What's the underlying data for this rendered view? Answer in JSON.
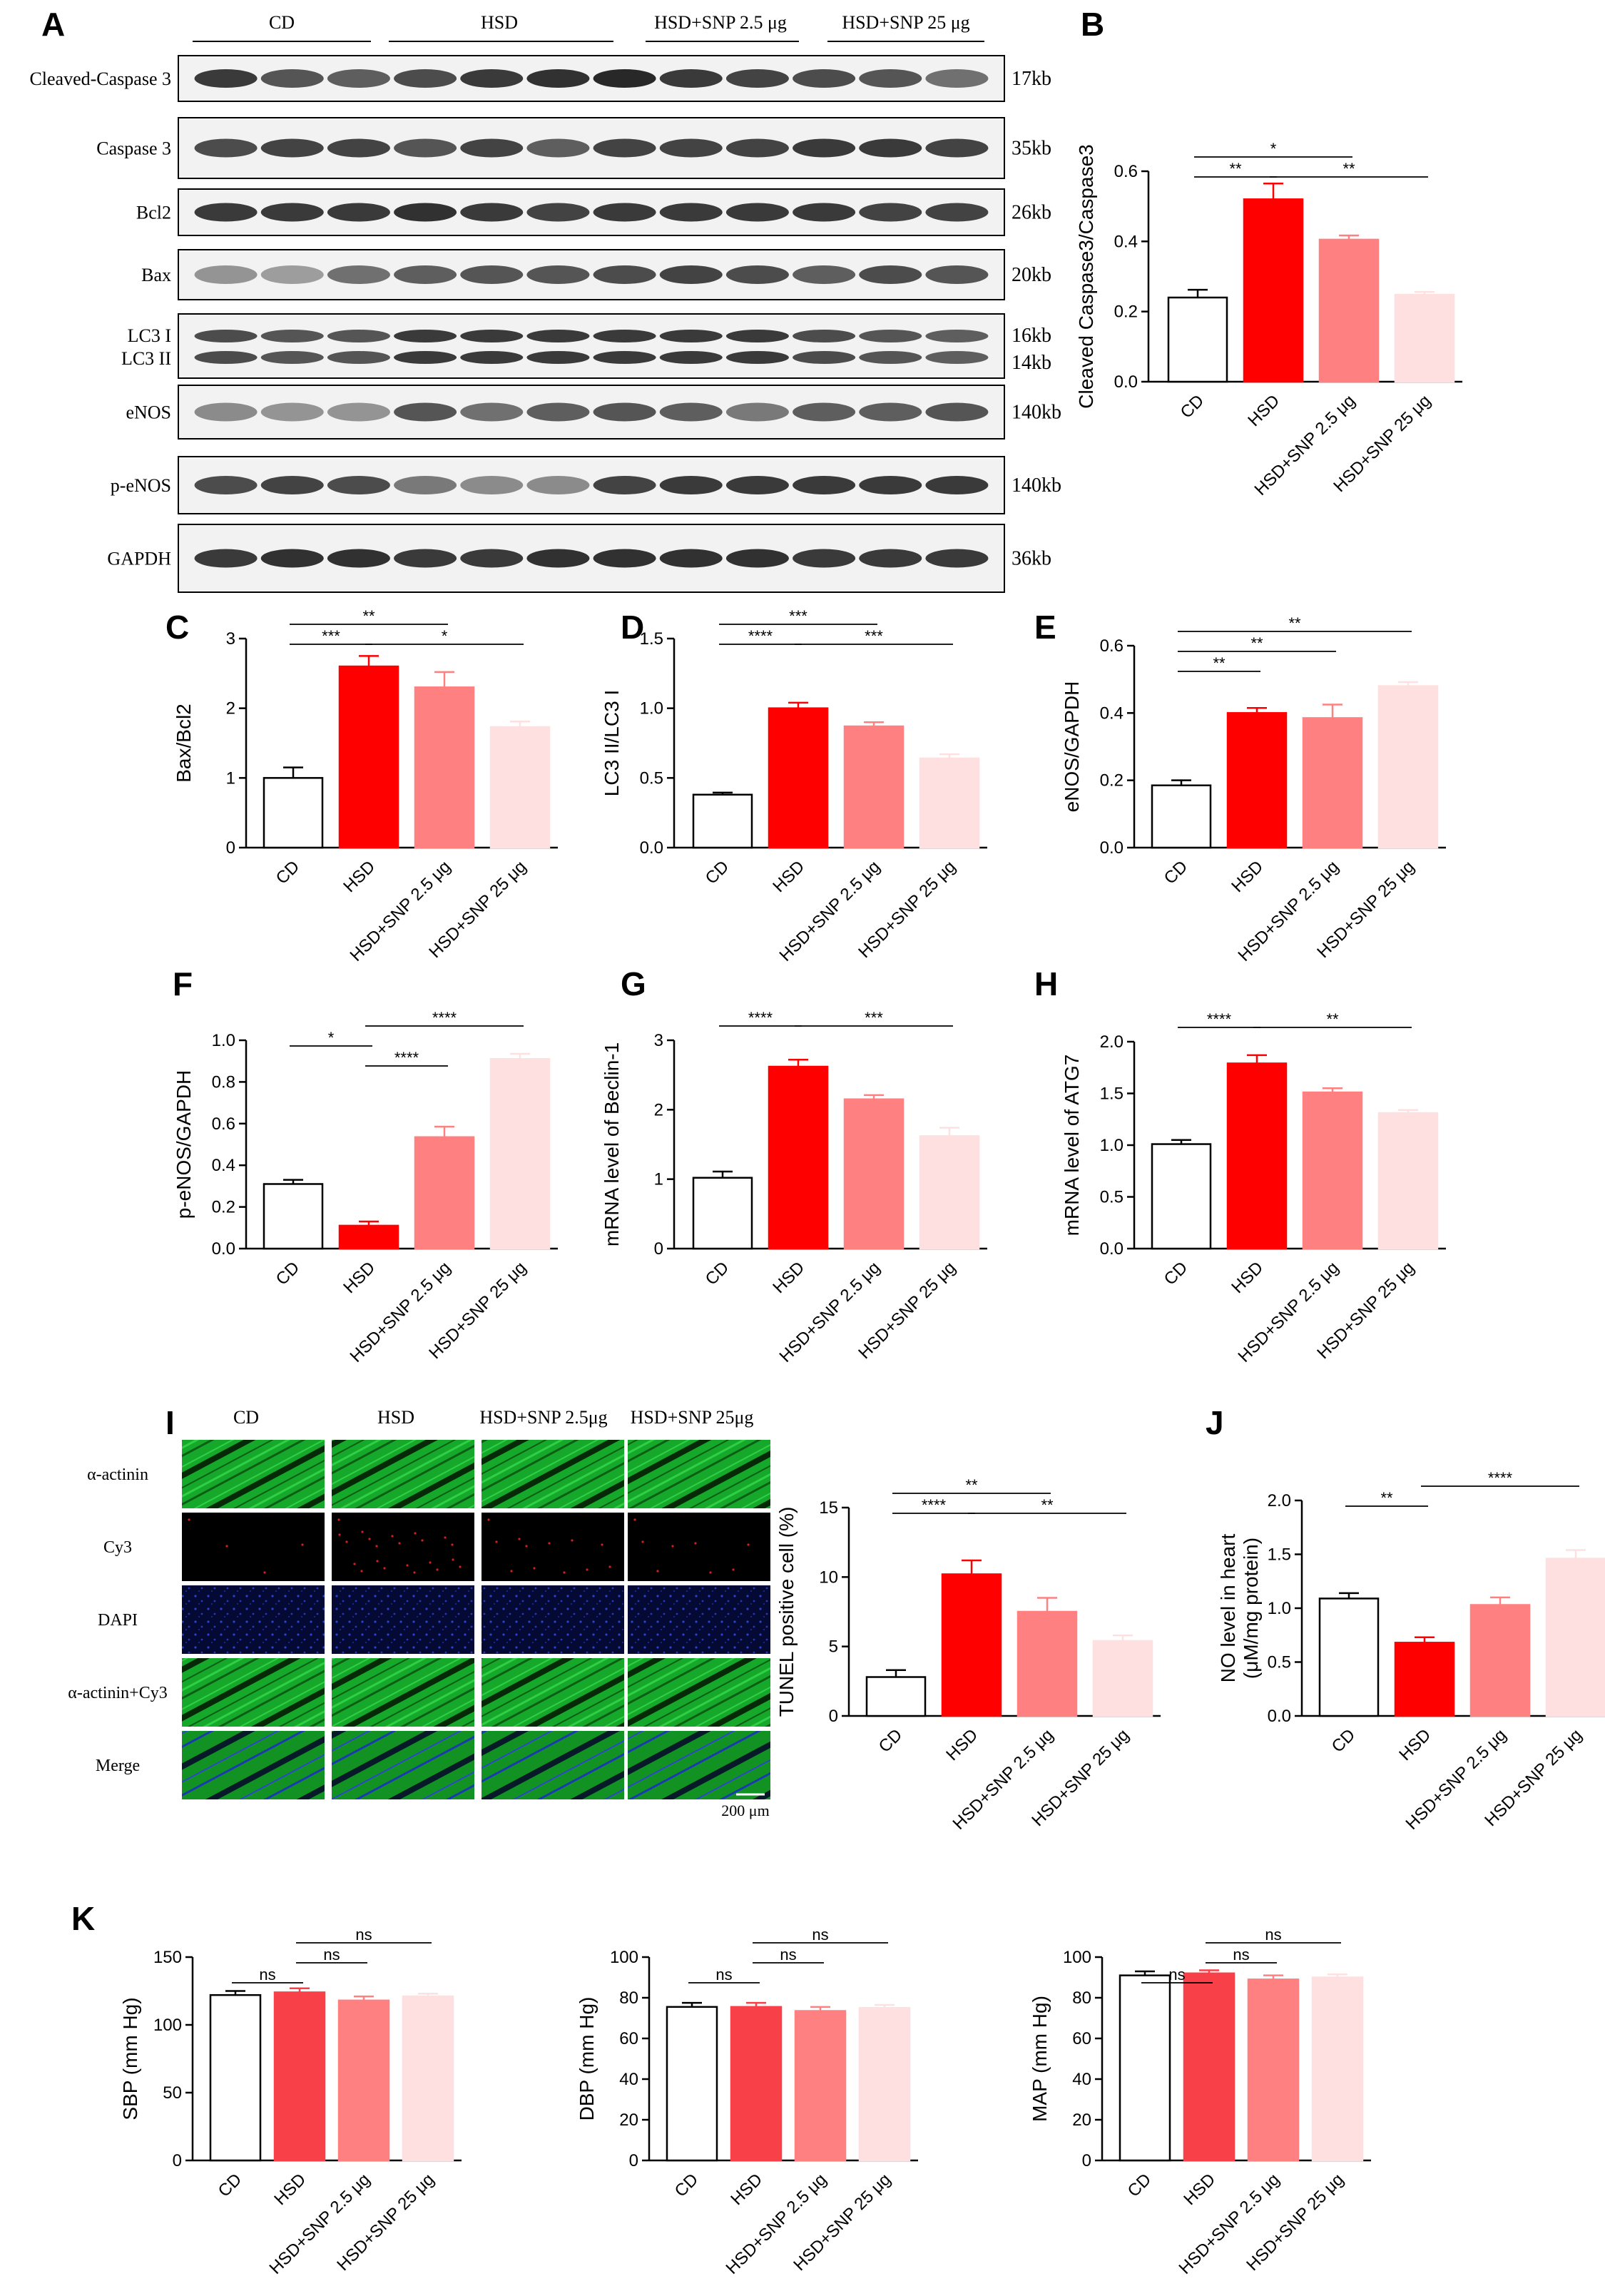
{
  "panel_letters": [
    "A",
    "B",
    "C",
    "D",
    "E",
    "F",
    "G",
    "H",
    "I",
    "J",
    "K"
  ],
  "blot": {
    "groups": [
      "CD",
      "HSD",
      "HSD+SNP 2.5 μg",
      "HSD+SNP 25 μg"
    ],
    "rows": [
      {
        "label": "Cleaved-Caspase 3",
        "size": "17kb"
      },
      {
        "label": "Caspase 3",
        "size": "35kb"
      },
      {
        "label": "Bcl2",
        "size": "26kb"
      },
      {
        "label": "Bax",
        "size": "20kb"
      },
      {
        "label": "LC3 I",
        "label2": "LC3 II",
        "size": "16kb",
        "size2": "14kb"
      },
      {
        "label": "eNOS",
        "size": "140kb"
      },
      {
        "label": "p-eNOS",
        "size": "140kb"
      },
      {
        "label": "GAPDH",
        "size": "36kb"
      }
    ]
  },
  "micro": {
    "columns": [
      "CD",
      "HSD",
      "HSD+SNP 2.5μg",
      "HSD+SNP 25μg"
    ],
    "rows": [
      "α-actinin",
      "Cy3",
      "DAPI",
      "α-actinin+Cy3",
      "Merge"
    ],
    "scale": "200 μm"
  },
  "colors": {
    "cd": "#ffffff",
    "hsd": "#ff0000",
    "snp25": "#ff8080",
    "snp250": "#ffe0e0",
    "hsd_k": "#f84048"
  },
  "chart_data": [
    {
      "id": "B",
      "type": "bar",
      "categories": [
        "CD",
        "HSD",
        "HSD+SNP 2.5 μg",
        "HSD+SNP 25 μg"
      ],
      "values": [
        0.24,
        0.52,
        0.405,
        0.248
      ],
      "errors": [
        0.022,
        0.045,
        0.012,
        0.008
      ],
      "ylabel": "Cleaved Caspase3/Caspase3",
      "ylim": [
        0,
        0.6
      ],
      "yticks": [
        "0.0",
        "0.2",
        "0.4",
        "0.6"
      ],
      "sig": [
        {
          "a": 0,
          "b": 2,
          "text": "*",
          "level": 0
        },
        {
          "a": 0,
          "b": 1,
          "text": "**",
          "level": 1
        },
        {
          "a": 1,
          "b": 3,
          "text": "**",
          "level": 1
        }
      ]
    },
    {
      "id": "C",
      "type": "bar",
      "categories": [
        "CD",
        "HSD",
        "HSD+SNP 2.5 μg",
        "HSD+SNP 25 μg"
      ],
      "values": [
        1.0,
        2.6,
        2.3,
        1.73
      ],
      "errors": [
        0.15,
        0.15,
        0.22,
        0.08
      ],
      "ylabel": "Bax/Bcl2",
      "ylim": [
        0,
        3
      ],
      "yticks": [
        "0",
        "1",
        "2",
        "3"
      ],
      "sig": [
        {
          "a": 0,
          "b": 2,
          "text": "**",
          "level": 0
        },
        {
          "a": 0,
          "b": 1,
          "text": "***",
          "level": 1
        },
        {
          "a": 1,
          "b": 3,
          "text": "*",
          "level": 1
        }
      ]
    },
    {
      "id": "D",
      "type": "bar",
      "categories": [
        "CD",
        "HSD",
        "HSD+SNP 2.5 μg",
        "HSD+SNP 25 μg"
      ],
      "values": [
        0.38,
        1.0,
        0.87,
        0.64
      ],
      "errors": [
        0.015,
        0.04,
        0.03,
        0.03
      ],
      "ylabel": "LC3 II/LC3 I",
      "ylim": [
        0,
        1.5
      ],
      "yticks": [
        "0.0",
        "0.5",
        "1.0",
        "1.5"
      ],
      "sig": [
        {
          "a": 0,
          "b": 2,
          "text": "***",
          "level": 0
        },
        {
          "a": 0,
          "b": 1,
          "text": "****",
          "level": 1
        },
        {
          "a": 1,
          "b": 3,
          "text": "***",
          "level": 1
        }
      ]
    },
    {
      "id": "E",
      "type": "bar",
      "categories": [
        "CD",
        "HSD",
        "HSD+SNP 2.5 μg",
        "HSD+SNP 25 μg"
      ],
      "values": [
        0.185,
        0.4,
        0.385,
        0.48
      ],
      "errors": [
        0.015,
        0.015,
        0.04,
        0.012
      ],
      "ylabel": "eNOS/GAPDH",
      "ylim": [
        0,
        0.6
      ],
      "yticks": [
        "0.0",
        "0.2",
        "0.4",
        "0.6"
      ],
      "sig": [
        {
          "a": 0,
          "b": 3,
          "text": "**",
          "level": 0
        },
        {
          "a": 0,
          "b": 2,
          "text": "**",
          "level": 1
        },
        {
          "a": 0,
          "b": 1,
          "text": "**",
          "level": 2
        }
      ]
    },
    {
      "id": "F",
      "type": "bar",
      "categories": [
        "CD",
        "HSD",
        "HSD+SNP 2.5 μg",
        "HSD+SNP 25 μg"
      ],
      "values": [
        0.31,
        0.11,
        0.535,
        0.91
      ],
      "errors": [
        0.02,
        0.02,
        0.05,
        0.025
      ],
      "ylabel": "p-eNOS/GAPDH",
      "ylim": [
        0,
        1.0
      ],
      "yticks": [
        "0.0",
        "0.2",
        "0.4",
        "0.6",
        "0.8",
        "1.0"
      ],
      "sig": [
        {
          "a": 1,
          "b": 3,
          "text": "****",
          "level": 0
        },
        {
          "a": 0,
          "b": 1,
          "text": "*",
          "level": 1
        },
        {
          "a": 1,
          "b": 2,
          "text": "****",
          "level": 2
        }
      ]
    },
    {
      "id": "G",
      "type": "bar",
      "categories": [
        "CD",
        "HSD",
        "HSD+SNP 2.5 μg",
        "HSD+SNP 25 μg"
      ],
      "values": [
        1.02,
        2.62,
        2.15,
        1.62
      ],
      "errors": [
        0.09,
        0.1,
        0.06,
        0.12
      ],
      "ylabel": "mRNA level of Beclin-1",
      "ylim": [
        0,
        3
      ],
      "yticks": [
        "0",
        "1",
        "2",
        "3"
      ],
      "sig": [
        {
          "a": 0,
          "b": 1,
          "text": "****",
          "level": 0
        },
        {
          "a": 1,
          "b": 3,
          "text": "***",
          "level": 0
        }
      ]
    },
    {
      "id": "H",
      "type": "bar",
      "categories": [
        "CD",
        "HSD",
        "HSD+SNP 2.5 μg",
        "HSD+SNP 25 μg"
      ],
      "values": [
        1.01,
        1.79,
        1.51,
        1.31
      ],
      "errors": [
        0.04,
        0.08,
        0.04,
        0.03
      ],
      "ylabel": "mRNA level of ATG7",
      "ylim": [
        0,
        2.0
      ],
      "yticks": [
        "0.0",
        "0.5",
        "1.0",
        "1.5",
        "2.0"
      ],
      "sig": [
        {
          "a": 0,
          "b": 1,
          "text": "****",
          "level": 0
        },
        {
          "a": 1,
          "b": 3,
          "text": "**",
          "level": 0
        }
      ]
    },
    {
      "id": "I",
      "type": "bar",
      "categories": [
        "CD",
        "HSD",
        "HSD+SNP 2.5 μg",
        "HSD+SNP 25 μg"
      ],
      "values": [
        2.8,
        10.2,
        7.5,
        5.4
      ],
      "errors": [
        0.5,
        1.0,
        1.0,
        0.4
      ],
      "ylabel": "TUNEL positive cell (%)",
      "ylim": [
        0,
        15
      ],
      "yticks": [
        "0",
        "5",
        "10",
        "15"
      ],
      "sig": [
        {
          "a": 0,
          "b": 2,
          "text": "**",
          "level": 0
        },
        {
          "a": 0,
          "b": 1,
          "text": "****",
          "level": 1
        },
        {
          "a": 1,
          "b": 3,
          "text": "**",
          "level": 1
        }
      ]
    },
    {
      "id": "J",
      "type": "bar",
      "categories": [
        "CD",
        "HSD",
        "HSD+SNP 2.5 μg",
        "HSD+SNP 25 μg"
      ],
      "values": [
        1.09,
        0.68,
        1.03,
        1.46
      ],
      "errors": [
        0.05,
        0.05,
        0.07,
        0.08
      ],
      "ylabel": "NO level in heart",
      "ylabel2": "(μM/mg protein)",
      "ylim": [
        0,
        2.0
      ],
      "yticks": [
        "0.0",
        "0.5",
        "1.0",
        "1.5",
        "2.0"
      ],
      "sig": [
        {
          "a": 0,
          "b": 1,
          "text": "**",
          "level": 1
        },
        {
          "a": 1,
          "b": 3,
          "text": "****",
          "level": 0
        }
      ]
    },
    {
      "id": "K1",
      "type": "bar",
      "categories": [
        "CD",
        "HSD",
        "HSD+SNP 2.5 μg",
        "HSD+SNP 25 μg"
      ],
      "values": [
        122,
        124,
        118,
        121
      ],
      "errors": [
        3,
        3,
        3,
        2
      ],
      "ylabel": "SBP (mm Hg)",
      "ylim": [
        0,
        150
      ],
      "yticks": [
        "0",
        "50",
        "100",
        "150"
      ],
      "sig": [
        {
          "a": 1,
          "b": 3,
          "text": "ns",
          "level": 0
        },
        {
          "a": 1,
          "b": 2,
          "text": "ns",
          "level": 1
        },
        {
          "a": 0,
          "b": 1,
          "text": "ns",
          "level": 2
        }
      ]
    },
    {
      "id": "K2",
      "type": "bar",
      "categories": [
        "CD",
        "HSD",
        "HSD+SNP 2.5 μg",
        "HSD+SNP 25 μg"
      ],
      "values": [
        75.5,
        75.5,
        73.5,
        75
      ],
      "errors": [
        2,
        2,
        2,
        1.5
      ],
      "ylabel": "DBP (mm Hg)",
      "ylim": [
        0,
        100
      ],
      "yticks": [
        "0",
        "20",
        "40",
        "60",
        "80",
        "100"
      ],
      "sig": [
        {
          "a": 1,
          "b": 3,
          "text": "ns",
          "level": 0
        },
        {
          "a": 1,
          "b": 2,
          "text": "ns",
          "level": 1
        },
        {
          "a": 0,
          "b": 1,
          "text": "ns",
          "level": 2
        }
      ]
    },
    {
      "id": "K3",
      "type": "bar",
      "categories": [
        "CD",
        "HSD",
        "HSD+SNP 2.5 μg",
        "HSD+SNP 25 μg"
      ],
      "values": [
        91,
        92,
        89,
        90
      ],
      "errors": [
        2,
        1.5,
        2,
        1.5
      ],
      "ylabel": "MAP (mm Hg)",
      "ylim": [
        0,
        100
      ],
      "yticks": [
        "0",
        "20",
        "40",
        "60",
        "80",
        "100"
      ],
      "sig": [
        {
          "a": 1,
          "b": 3,
          "text": "ns",
          "level": 0
        },
        {
          "a": 1,
          "b": 2,
          "text": "ns",
          "level": 1
        },
        {
          "a": 0,
          "b": 1,
          "text": "ns",
          "level": 2
        }
      ]
    }
  ]
}
